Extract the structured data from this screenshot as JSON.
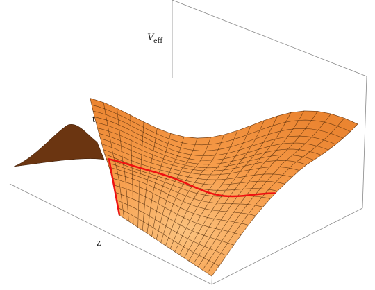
{
  "chart_data": {
    "type": "surface",
    "x_label": "z",
    "y_label": "t",
    "z_label": "V",
    "z_label_subscript": "eff",
    "color": "#f5953f",
    "curve_color": "#ee1111"
  }
}
